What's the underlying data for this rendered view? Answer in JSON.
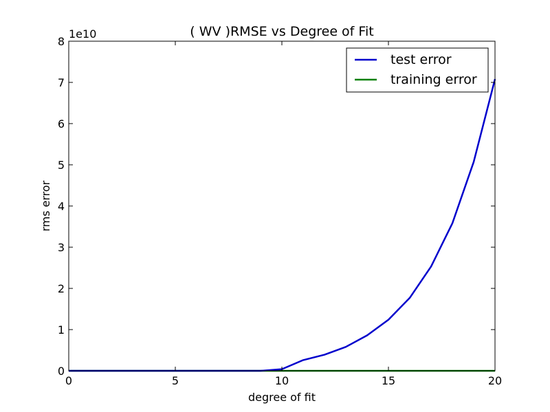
{
  "chart_data": {
    "type": "line",
    "title": "(  WV  )RMSE vs Degree of Fit",
    "xlabel": "degree of fit",
    "ylabel": "rms error",
    "y_offset_label": "1e10",
    "xlim": [
      0,
      20
    ],
    "ylim": [
      0,
      80000000000
    ],
    "x_ticks": [
      0,
      5,
      10,
      15,
      20
    ],
    "x_tick_labels": [
      "0",
      "5",
      "10",
      "15",
      "20"
    ],
    "y_ticks": [
      0,
      10000000000,
      20000000000,
      30000000000,
      40000000000,
      50000000000,
      60000000000,
      70000000000,
      80000000000
    ],
    "y_tick_labels": [
      "0",
      "1",
      "2",
      "3",
      "4",
      "5",
      "6",
      "7",
      "8"
    ],
    "grid": false,
    "legend_position": "upper-right",
    "x": [
      0,
      1,
      2,
      3,
      4,
      5,
      6,
      7,
      8,
      9,
      10,
      11,
      12,
      13,
      14,
      15,
      16,
      17,
      18,
      19,
      20
    ],
    "series": [
      {
        "name": "test error",
        "color": "#0000cc",
        "values": [
          0,
          0,
          0,
          0,
          0,
          0,
          0,
          0,
          0,
          0,
          400000000,
          2600000000,
          3900000000,
          5800000000,
          8600000000,
          12400000000,
          17700000000,
          25300000000,
          35800000000,
          50700000000,
          70800000000
        ]
      },
      {
        "name": "training error",
        "color": "#007f00",
        "values": [
          0,
          0,
          0,
          0,
          0,
          0,
          0,
          0,
          0,
          0,
          0,
          0,
          0,
          0,
          0,
          0,
          0,
          0,
          0,
          0,
          0
        ]
      }
    ]
  }
}
